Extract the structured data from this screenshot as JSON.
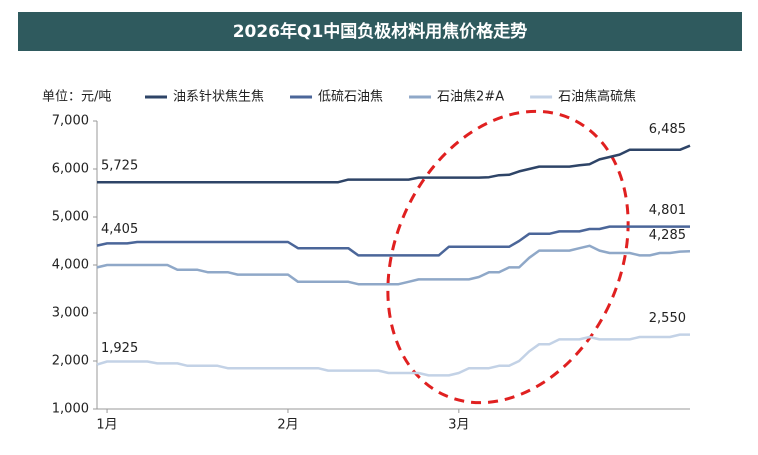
{
  "chart_data": {
    "type": "line",
    "title": "2026年Q1中国负极材料用焦价格走势",
    "unit_label": "单位：元/吨",
    "categories": [
      null,
      "1月",
      null,
      null,
      null,
      null,
      null,
      null,
      null,
      null,
      null,
      null,
      null,
      null,
      null,
      null,
      null,
      null,
      null,
      "2月",
      null,
      null,
      null,
      null,
      null,
      null,
      null,
      null,
      null,
      null,
      null,
      null,
      null,
      null,
      null,
      null,
      "3月",
      null,
      null,
      null,
      null,
      null,
      null,
      null,
      null,
      null,
      null,
      null,
      null,
      null,
      null,
      null,
      null,
      null,
      null,
      null,
      null,
      null,
      null,
      null
    ],
    "ylim": [
      1000,
      7000
    ],
    "yticks": [
      {
        "value": 1000,
        "label": "1,000"
      },
      {
        "value": 2000,
        "label": "2,000"
      },
      {
        "value": 3000,
        "label": "3,000"
      },
      {
        "value": 4000,
        "label": "4,000"
      },
      {
        "value": 5000,
        "label": "5,000"
      },
      {
        "value": 6000,
        "label": "6,000"
      },
      {
        "value": 7000,
        "label": "7,000"
      }
    ],
    "series": [
      {
        "name": "油系针状焦生焦",
        "color": "#2e4467",
        "values": [
          5725,
          5725,
          5725,
          5725,
          5725,
          5725,
          5725,
          5725,
          5725,
          5725,
          5725,
          5725,
          5725,
          5725,
          5725,
          5725,
          5725,
          5725,
          5725,
          5725,
          5725,
          5725,
          5725,
          5725,
          5725,
          5780,
          5780,
          5780,
          5780,
          5780,
          5780,
          5780,
          5820,
          5820,
          5820,
          5820,
          5820,
          5820,
          5820,
          5830,
          5870,
          5880,
          5950,
          6000,
          6050,
          6050,
          6050,
          6050,
          6080,
          6100,
          6200,
          6250,
          6300,
          6400,
          6400,
          6400,
          6400,
          6400,
          6400,
          6485
        ],
        "value_labels": [
          "5,725",
          null,
          null,
          null,
          null,
          null,
          null,
          null,
          null,
          null,
          null,
          null,
          null,
          null,
          null,
          null,
          null,
          null,
          null,
          null,
          null,
          null,
          null,
          null,
          null,
          null,
          null,
          null,
          null,
          null,
          null,
          null,
          null,
          null,
          null,
          null,
          null,
          null,
          null,
          null,
          null,
          null,
          null,
          null,
          null,
          null,
          null,
          null,
          null,
          null,
          null,
          null,
          null,
          null,
          null,
          null,
          null,
          null,
          null,
          "6,485"
        ]
      },
      {
        "name": "低硫石油焦",
        "color": "#4b6699",
        "values": [
          4405,
          4450,
          4450,
          4450,
          4480,
          4480,
          4480,
          4480,
          4480,
          4480,
          4480,
          4480,
          4480,
          4480,
          4480,
          4480,
          4480,
          4480,
          4480,
          4480,
          4350,
          4350,
          4350,
          4350,
          4350,
          4350,
          4200,
          4200,
          4200,
          4200,
          4200,
          4200,
          4200,
          4200,
          4200,
          4380,
          4380,
          4380,
          4380,
          4380,
          4380,
          4380,
          4500,
          4650,
          4650,
          4650,
          4700,
          4700,
          4700,
          4750,
          4750,
          4800,
          4800,
          4800,
          4800,
          4800,
          4800,
          4800,
          4800,
          4801
        ],
        "value_labels": [
          "4,405",
          null,
          null,
          null,
          null,
          null,
          null,
          null,
          null,
          null,
          null,
          null,
          null,
          null,
          null,
          null,
          null,
          null,
          null,
          null,
          null,
          null,
          null,
          null,
          null,
          null,
          null,
          null,
          null,
          null,
          null,
          null,
          null,
          null,
          null,
          null,
          null,
          null,
          null,
          null,
          null,
          null,
          null,
          null,
          null,
          null,
          null,
          null,
          null,
          null,
          null,
          null,
          null,
          null,
          null,
          null,
          null,
          null,
          null,
          "4,801"
        ]
      },
      {
        "name": "石油焦2#A",
        "color": "#8fa8c8",
        "values": [
          3950,
          4000,
          4000,
          4000,
          4000,
          4000,
          4000,
          4000,
          3900,
          3900,
          3900,
          3850,
          3850,
          3850,
          3800,
          3800,
          3800,
          3800,
          3800,
          3800,
          3650,
          3650,
          3650,
          3650,
          3650,
          3650,
          3600,
          3600,
          3600,
          3600,
          3600,
          3650,
          3700,
          3700,
          3700,
          3700,
          3700,
          3700,
          3750,
          3850,
          3850,
          3950,
          3950,
          4150,
          4300,
          4300,
          4300,
          4300,
          4350,
          4400,
          4300,
          4250,
          4250,
          4250,
          4200,
          4200,
          4250,
          4250,
          4280,
          4285
        ],
        "value_labels": [
          null,
          null,
          null,
          null,
          null,
          null,
          null,
          null,
          null,
          null,
          null,
          null,
          null,
          null,
          null,
          null,
          null,
          null,
          null,
          null,
          null,
          null,
          null,
          null,
          null,
          null,
          null,
          null,
          null,
          null,
          null,
          null,
          null,
          null,
          null,
          null,
          null,
          null,
          null,
          null,
          null,
          null,
          null,
          null,
          null,
          null,
          null,
          null,
          null,
          null,
          null,
          null,
          null,
          null,
          null,
          null,
          null,
          null,
          null,
          "4,285"
        ]
      },
      {
        "name": "石油焦高硫焦",
        "color": "#c3d2e6",
        "values": [
          1925,
          1990,
          1990,
          1990,
          1990,
          1990,
          1950,
          1950,
          1950,
          1900,
          1900,
          1900,
          1900,
          1850,
          1850,
          1850,
          1850,
          1850,
          1850,
          1850,
          1850,
          1850,
          1850,
          1800,
          1800,
          1800,
          1800,
          1800,
          1800,
          1750,
          1750,
          1750,
          1750,
          1700,
          1700,
          1700,
          1750,
          1850,
          1850,
          1850,
          1900,
          1900,
          2000,
          2200,
          2350,
          2350,
          2450,
          2450,
          2450,
          2500,
          2450,
          2450,
          2450,
          2450,
          2500,
          2500,
          2500,
          2500,
          2550,
          2550
        ],
        "value_labels": [
          "1,925",
          null,
          null,
          null,
          null,
          null,
          null,
          null,
          null,
          null,
          null,
          null,
          null,
          null,
          null,
          null,
          null,
          null,
          null,
          null,
          null,
          null,
          null,
          null,
          null,
          null,
          null,
          null,
          null,
          null,
          null,
          null,
          null,
          null,
          null,
          null,
          null,
          null,
          null,
          null,
          null,
          null,
          null,
          null,
          null,
          null,
          null,
          null,
          null,
          null,
          null,
          null,
          null,
          null,
          null,
          null,
          null,
          null,
          null,
          "2,550"
        ]
      }
    ]
  }
}
